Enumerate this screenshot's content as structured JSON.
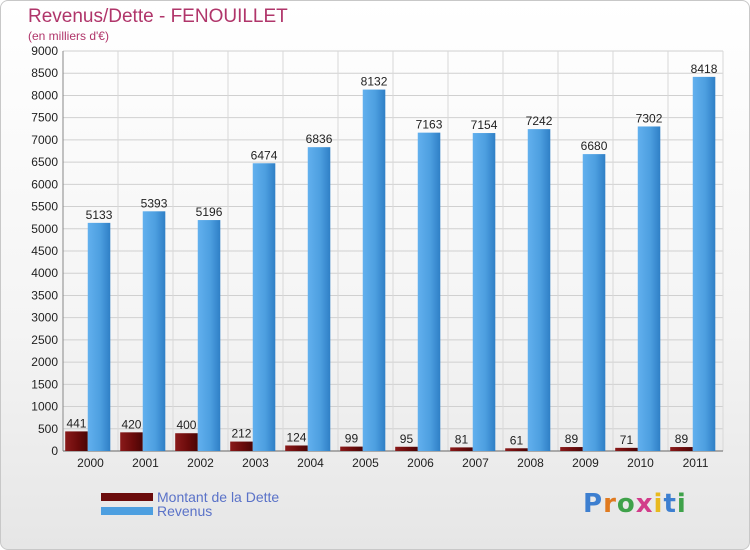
{
  "title": "Revenus/Dette - FENOUILLET",
  "subtitle": "(en milliers d'€)",
  "colors": {
    "dette": "#6b0b0b",
    "revenus": "#4d9fe0",
    "title": "#b0356a",
    "legend_text": "#5a72c8"
  },
  "legend": {
    "dette": "Montant de la Dette",
    "revenus": "Revenus"
  },
  "logo": {
    "text": "Proxiti"
  },
  "chart_data": {
    "type": "bar",
    "title": "Revenus/Dette - FENOUILLET",
    "subtitle": "(en milliers d'€)",
    "categories": [
      "2000",
      "2001",
      "2002",
      "2003",
      "2004",
      "2005",
      "2006",
      "2007",
      "2008",
      "2009",
      "2010",
      "2011"
    ],
    "series": [
      {
        "name": "Montant de la Dette",
        "values": [
          441,
          420,
          400,
          212,
          124,
          99,
          95,
          81,
          61,
          89,
          71,
          89
        ]
      },
      {
        "name": "Revenus",
        "values": [
          5133,
          5393,
          5196,
          6474,
          6836,
          8132,
          7163,
          7154,
          7242,
          6680,
          7302,
          8418
        ]
      }
    ],
    "ylim": [
      0,
      9000
    ],
    "ytick_step": 500,
    "grid": true,
    "legend_position": "bottom-left",
    "data_labels": true
  }
}
